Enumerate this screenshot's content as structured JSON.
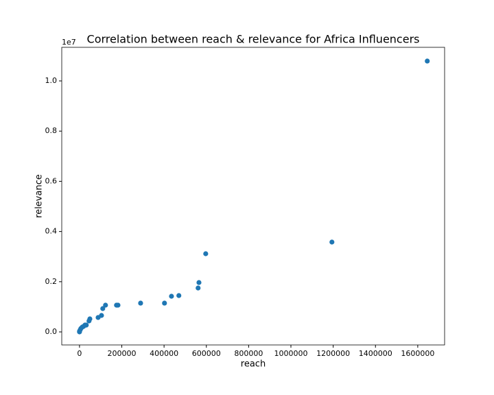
{
  "chart_data": {
    "type": "scatter",
    "title": "Correlation between reach & relevance for Africa Influencers",
    "x_label": "reach",
    "y_label": "relevance",
    "y_offset_label": "1e7",
    "color": "#1f77b4",
    "x": [
      1645000,
      1194000,
      597000,
      565000,
      561000,
      470000,
      435000,
      402000,
      289000,
      182000,
      175000,
      123000,
      110000,
      104000,
      88000,
      49000,
      45000,
      32000,
      26000,
      19000,
      13000,
      6500,
      3200,
      0,
      0
    ],
    "values": [
      10792000,
      3579000,
      3115000,
      1967000,
      1749000,
      1448000,
      1421000,
      1147000,
      1147000,
      1066000,
      1066000,
      1066000,
      929000,
      656000,
      574000,
      519000,
      437000,
      273000,
      273000,
      219000,
      191000,
      137000,
      82000,
      27000,
      0
    ],
    "xlim": [
      -84000,
      1727000
    ],
    "ylim": [
      -519000,
      11339000
    ],
    "xticks": [
      0,
      200000,
      400000,
      600000,
      800000,
      1000000,
      1200000,
      1400000,
      1600000
    ],
    "yticks": [
      {
        "value": 0,
        "label": "0.0"
      },
      {
        "value": 2000000,
        "label": "0.2"
      },
      {
        "value": 4000000,
        "label": "0.4"
      },
      {
        "value": 6000000,
        "label": "0.6"
      },
      {
        "value": 8000000,
        "label": "0.8"
      },
      {
        "value": 10000000,
        "label": "1.0"
      }
    ],
    "grid": false
  }
}
